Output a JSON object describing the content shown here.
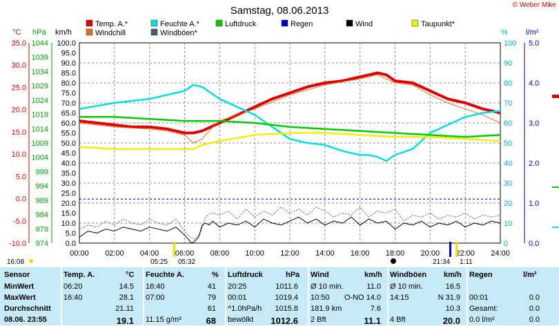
{
  "title": "Samstag, 08.06.2013",
  "copyright": "© Weber Mike",
  "axis_units": {
    "temp": "°C",
    "press": "hPa",
    "wind": "km/h",
    "percent": "%",
    "rain": "l/m²"
  },
  "legend": [
    {
      "label": "Temp. A.*",
      "color": "#e00000"
    },
    {
      "label": "Feuchte A.*",
      "color": "#00e0e0"
    },
    {
      "label": "Luftdruck",
      "color": "#00cc00"
    },
    {
      "label": "Regen",
      "color": "#0000cc"
    },
    {
      "label": "Wind",
      "color": "#000000"
    },
    {
      "label": "Taupunkt*",
      "color": "#f0f000"
    },
    {
      "label": "Windchill",
      "color": "#e07020"
    },
    {
      "label": "Windböen*",
      "color": "#406070"
    }
  ],
  "sun": {
    "sunrise_time": "16:08",
    "sunrise_label": "05:25",
    "moon_label": "05:32",
    "sunset_label": "21:34",
    "moonset_label": "1:11"
  },
  "chart_data": {
    "type": "line",
    "x_ticks": [
      "00:00",
      "02:00",
      "04:00",
      "06:00",
      "08:00",
      "10:00",
      "12:00",
      "14:00",
      "16:00",
      "18:00",
      "20:00",
      "22:00",
      "24:00"
    ],
    "temp_ticks": [
      "35.0",
      "30.0",
      "25.0",
      "20.0",
      "15.0",
      "10.0",
      "5.0",
      "0.0",
      "-5.0",
      "-10.0"
    ],
    "press_ticks": [
      "1044",
      "1039",
      "1034",
      "1029",
      "1024",
      "1019",
      "1014",
      "1009",
      "1004",
      "999",
      "994",
      "989",
      "984",
      "979",
      "974"
    ],
    "wind_ticks": [
      "100.0",
      "95.0",
      "90.0",
      "85.0",
      "80.0",
      "75.0",
      "70.0",
      "65.0",
      "60.0",
      "55.0",
      "50.0",
      "45.0",
      "40.0",
      "35.0",
      "30.0",
      "25.0",
      "20.0",
      "15.0",
      "10.0",
      "5.0",
      "0.0"
    ],
    "percent_ticks": [
      "100",
      "90",
      "80",
      "70",
      "60",
      "50",
      "40",
      "30",
      "20",
      "10",
      "0"
    ],
    "rain_ticks": [
      "5.0",
      "4.0",
      "3.0",
      "2.0",
      "1.0",
      "0.0"
    ],
    "ylim_wind": [
      0,
      100
    ],
    "series": [
      {
        "name": "Temp. A.*",
        "color": "#e00000",
        "width": 4,
        "x": [
          0,
          1,
          2,
          3,
          4,
          5,
          5.5,
          6,
          6.5,
          7,
          8,
          9,
          10,
          11,
          12,
          13,
          14,
          15,
          16,
          16.5,
          17,
          17.5,
          18,
          19,
          20,
          21,
          22,
          23,
          24
        ],
        "y": [
          61,
          60,
          59,
          58,
          58,
          57,
          56,
          55,
          55,
          56,
          60,
          64,
          68,
          72,
          75,
          78,
          80,
          81,
          83,
          84,
          85,
          84,
          81,
          80,
          76,
          72,
          70,
          67,
          65
        ]
      },
      {
        "name": "Windchill",
        "color": "#e07020",
        "width": 1,
        "x": [
          0,
          2,
          4,
          5,
          6,
          6.5,
          7,
          7.5,
          8,
          10,
          12,
          14,
          16,
          17,
          18,
          19,
          20,
          21,
          22,
          23,
          24
        ],
        "y": [
          60,
          58,
          57,
          56,
          54,
          50,
          52,
          57,
          61,
          67,
          74,
          79,
          82,
          84,
          80,
          79,
          74,
          70,
          67,
          64,
          60
        ]
      },
      {
        "name": "Feuchte A.*",
        "color": "#00e0e0",
        "width": 2.5,
        "x": [
          0,
          2,
          4,
          5,
          6,
          6.5,
          7,
          8,
          9,
          10,
          11,
          12,
          13,
          14,
          15,
          16,
          16.5,
          17,
          17.5,
          18,
          19,
          20,
          21,
          22,
          23,
          24
        ],
        "y": [
          67,
          70,
          72,
          74,
          76,
          79,
          78,
          72,
          68,
          64,
          58,
          52,
          50,
          49,
          46,
          44,
          44,
          43,
          41,
          44,
          47,
          55,
          59,
          63,
          65,
          66
        ]
      },
      {
        "name": "Luftdruck",
        "color": "#00cc00",
        "width": 2.5,
        "x": [
          0,
          2,
          4,
          6,
          8,
          10,
          12,
          14,
          16,
          18,
          20,
          22,
          24
        ],
        "y": [
          63,
          63,
          62,
          61,
          61,
          60,
          58,
          57,
          56,
          55,
          54,
          53,
          54
        ]
      },
      {
        "name": "Taupunkt*",
        "color": "#f0f000",
        "width": 2.5,
        "x": [
          0,
          2,
          4,
          6,
          6.5,
          7,
          8,
          10,
          12,
          14,
          16,
          18,
          20,
          22,
          24
        ],
        "y": [
          48,
          47,
          47,
          47,
          47,
          49,
          51,
          54,
          55,
          55,
          54,
          53,
          53,
          52,
          51
        ]
      },
      {
        "name": "Wind",
        "color": "#000000",
        "width": 1,
        "x": [
          0,
          0.5,
          1,
          1.5,
          2,
          2.5,
          3,
          3.5,
          4,
          4.5,
          5,
          5.5,
          6,
          6.2,
          6.4,
          6.6,
          6.8,
          7,
          7.2,
          7.4,
          7.6,
          8,
          8.5,
          9,
          9.5,
          10,
          10.5,
          11,
          11.5,
          12,
          12.5,
          13,
          13.5,
          14,
          14.5,
          15,
          15.5,
          16,
          16.5,
          17,
          17.5,
          18,
          18.5,
          19,
          19.5,
          20,
          20.5,
          21,
          21.5,
          22,
          22.5,
          23,
          23.5,
          24
        ],
        "y": [
          3,
          6,
          5,
          7,
          6,
          8,
          7,
          6,
          8,
          7,
          6,
          8,
          4,
          2,
          0,
          1,
          3,
          9,
          10,
          9,
          11,
          8,
          10,
          9,
          11,
          8,
          12,
          10,
          9,
          11,
          13,
          10,
          12,
          9,
          11,
          10,
          13,
          9,
          12,
          10,
          11,
          7,
          10,
          9,
          11,
          8,
          10,
          9,
          11,
          8,
          10,
          9,
          11,
          10
        ]
      },
      {
        "name": "Windböen*",
        "color": "#406070",
        "width": 1,
        "dashed": true,
        "x": [
          0,
          0.5,
          1,
          1.5,
          2,
          2.5,
          3,
          3.5,
          4,
          4.5,
          5,
          5.5,
          6,
          6.3,
          6.6,
          6.9,
          7.2,
          7.5,
          8,
          8.5,
          9,
          9.5,
          10,
          10.5,
          11,
          11.5,
          12,
          12.5,
          13,
          13.5,
          14,
          14.5,
          15,
          15.5,
          16,
          16.5,
          17,
          17.5,
          18,
          18.5,
          19,
          19.5,
          20,
          20.5,
          21,
          21.5,
          22,
          22.5,
          23,
          23.5,
          24
        ],
        "y": [
          7,
          9,
          8,
          11,
          9,
          12,
          10,
          9,
          12,
          10,
          9,
          12,
          6,
          3,
          2,
          5,
          13,
          15,
          14,
          16,
          12,
          17,
          13,
          16,
          14,
          18,
          15,
          17,
          14,
          18,
          16,
          13,
          15,
          14,
          18,
          13,
          16,
          15,
          17,
          11,
          14,
          13,
          15,
          12,
          14,
          13,
          15,
          12,
          14,
          13,
          14
        ]
      }
    ],
    "rain_line_wind_value": 22
  },
  "table": {
    "headers": [
      {
        "name": "Sensor",
        "unit": ""
      },
      {
        "name": "Temp. A.",
        "unit": "°C"
      },
      {
        "name": "Feuchte A.",
        "unit": "%"
      },
      {
        "name": "Luftdruck",
        "unit": "hPa"
      },
      {
        "name": "Wind",
        "unit": "km/h"
      },
      {
        "name": "Windböen",
        "unit": "km/h"
      },
      {
        "name": "Regen",
        "unit": "l/m²"
      }
    ],
    "row_labels": [
      "MinWert",
      "MaxWert",
      "Durchschnitt",
      "08.06. 23:55"
    ],
    "temp": [
      [
        "06:20",
        "14.5"
      ],
      [
        "16:40",
        "28.1"
      ],
      [
        "",
        "21.11"
      ],
      [
        "",
        "19.1"
      ]
    ],
    "feuchte": [
      [
        "16:40",
        "41"
      ],
      [
        "07:00",
        "79"
      ],
      [
        "",
        "61"
      ],
      [
        "11.15 g/m³",
        "68"
      ]
    ],
    "luftdruck": [
      [
        "20:25",
        "1011.6"
      ],
      [
        "00:01",
        "1019.4"
      ],
      [
        "^1.0hPa/h",
        "1015.8"
      ],
      [
        "bewölkt",
        "1012.6"
      ]
    ],
    "wind": [
      [
        "Ø 10 min.",
        "11.0"
      ],
      [
        "10:50",
        "O-NO 14.0"
      ],
      [
        "181.9 km",
        "7.6"
      ],
      [
        "2 Bft",
        "11.1"
      ]
    ],
    "boeen": [
      [
        "Ø 10 min.",
        "16.5"
      ],
      [
        "14:15",
        "N 31.9"
      ],
      [
        "",
        "10.3"
      ],
      [
        "4 Bft",
        "20.0"
      ]
    ],
    "regen": [
      [
        "",
        ""
      ],
      [
        "00:01",
        "0.0"
      ],
      [
        "Gesamt:",
        "0.0"
      ],
      [
        "0.0 l/m²",
        "0.0"
      ]
    ]
  }
}
